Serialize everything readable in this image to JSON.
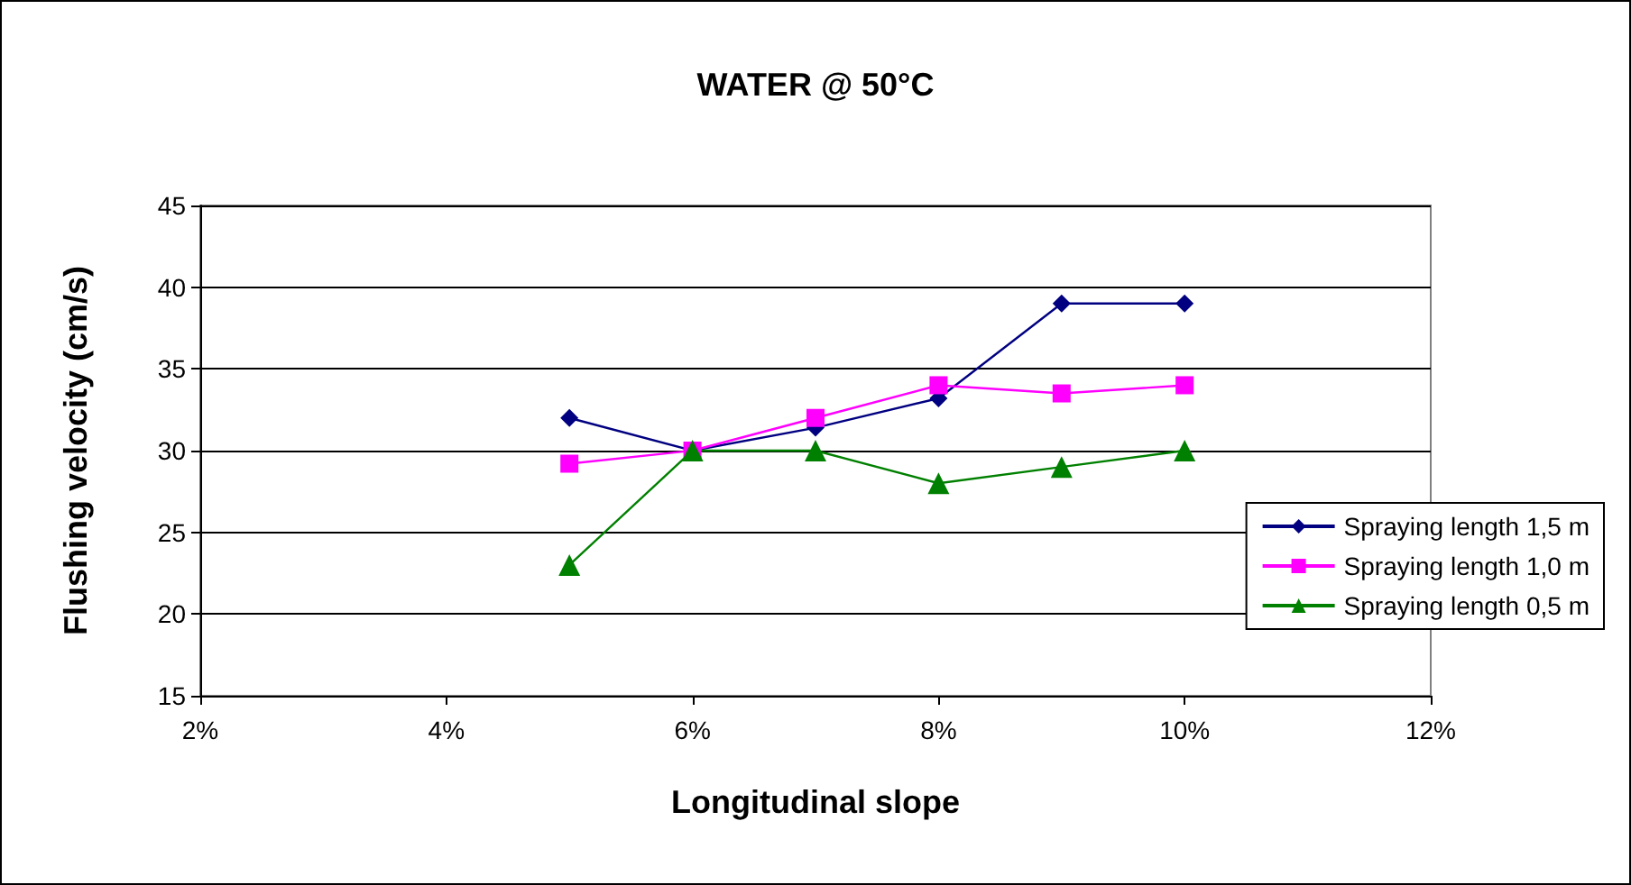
{
  "chart_data": {
    "type": "line",
    "title": "WATER @ 50°C",
    "xlabel": "Longitudinal slope",
    "ylabel": "Flushing velocity (cm/s)",
    "x": [
      5,
      6,
      7,
      8,
      9,
      10
    ],
    "series": [
      {
        "name": "Spraying length 1,5 m",
        "color": "#000080",
        "marker": "diamond",
        "values": [
          32,
          30,
          31.4,
          33.2,
          39,
          39
        ]
      },
      {
        "name": "Spraying length 1,0 m",
        "color": "#ff00ff",
        "marker": "square",
        "values": [
          29.2,
          30,
          32,
          34,
          33.5,
          34
        ]
      },
      {
        "name": "Spraying length 0,5 m",
        "color": "#008000",
        "marker": "triangle",
        "values": [
          23,
          30,
          30,
          28,
          29,
          30
        ]
      }
    ],
    "xlim": [
      2,
      12
    ],
    "xticks": [
      {
        "value": 2,
        "label": "2%"
      },
      {
        "value": 4,
        "label": "4%"
      },
      {
        "value": 6,
        "label": "6%"
      },
      {
        "value": 8,
        "label": "8%"
      },
      {
        "value": 10,
        "label": "10%"
      },
      {
        "value": 12,
        "label": "12%"
      }
    ],
    "ylim": [
      15,
      45
    ],
    "yticks": [
      15,
      20,
      25,
      30,
      35,
      40,
      45
    ],
    "grid": "y",
    "legend": "right",
    "line_style": "solid"
  }
}
